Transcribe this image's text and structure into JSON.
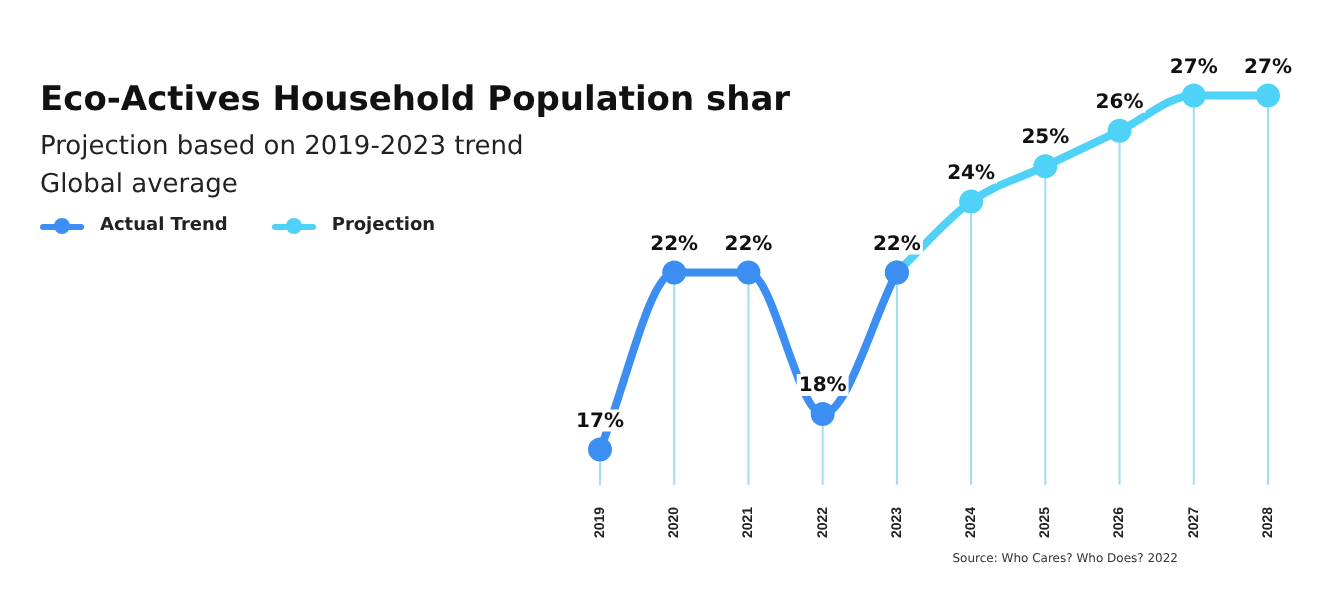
{
  "chart_data": {
    "type": "line",
    "title": "Eco-Actives Household Population shar",
    "subtitle": "Projection based on 2019-2023 trend\nGlobal average",
    "categories": [
      "2019",
      "2020",
      "2021",
      "2022",
      "2023",
      "2024",
      "2025",
      "2026",
      "2027",
      "2028"
    ],
    "series": [
      {
        "name": "Actual Trend",
        "color": "#3d8ef2",
        "values": [
          17,
          22,
          22,
          18,
          22,
          null,
          null,
          null,
          null,
          null
        ],
        "value_labels": [
          "17%",
          "22%",
          "22%",
          "18%",
          null,
          null,
          null,
          null,
          null,
          null
        ]
      },
      {
        "name": "Projection",
        "color": "#4fd2f7",
        "values": [
          null,
          null,
          null,
          null,
          22,
          24,
          25,
          26,
          27,
          27
        ],
        "value_labels": [
          null,
          null,
          null,
          null,
          "22%",
          "24%",
          "25%",
          "26%",
          "27%",
          "27%"
        ]
      }
    ],
    "annotations": [
      "Source: Who Cares? Who Does? 2022"
    ],
    "grid": "x",
    "legend": "top left",
    "marker": "circle",
    "line_style": "solid"
  }
}
